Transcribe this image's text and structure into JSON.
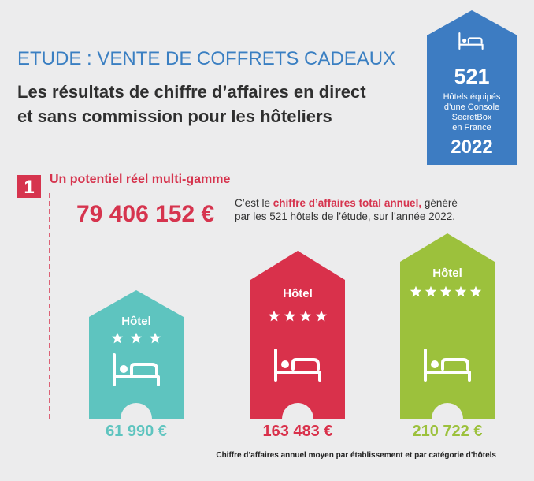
{
  "header": {
    "title": "ETUDE : VENTE DE COFFRETS CADEAUX",
    "subtitle_lines": [
      "Les résultats de chiffre d’affaires en direct",
      "et sans commission pour les hôteliers"
    ]
  },
  "badge": {
    "count": "521",
    "lines": [
      "Hôtels équipés",
      "d’une Console",
      "SecretBox",
      "en France"
    ],
    "year": "2022"
  },
  "section": {
    "number": "1",
    "title": "Un potentiel réel multi-gamme",
    "total": "79 406 152 €",
    "description": {
      "prefix": "C’est le ",
      "highlight": "chiffre d’affaires total annuel,",
      "suffix": " généré",
      "line2": "par les 521 hôtels de l’étude, sur l’année 2022."
    }
  },
  "hotels": [
    {
      "label": "Hôtel",
      "value": "61 990 €"
    },
    {
      "label": "Hôtel",
      "value": "163 483 €"
    },
    {
      "label": "Hôtel",
      "value": "210 722 €"
    }
  ],
  "footnote": "Chiffre d’affaires annuel moyen par établissement et par catégorie d’hôtels"
}
